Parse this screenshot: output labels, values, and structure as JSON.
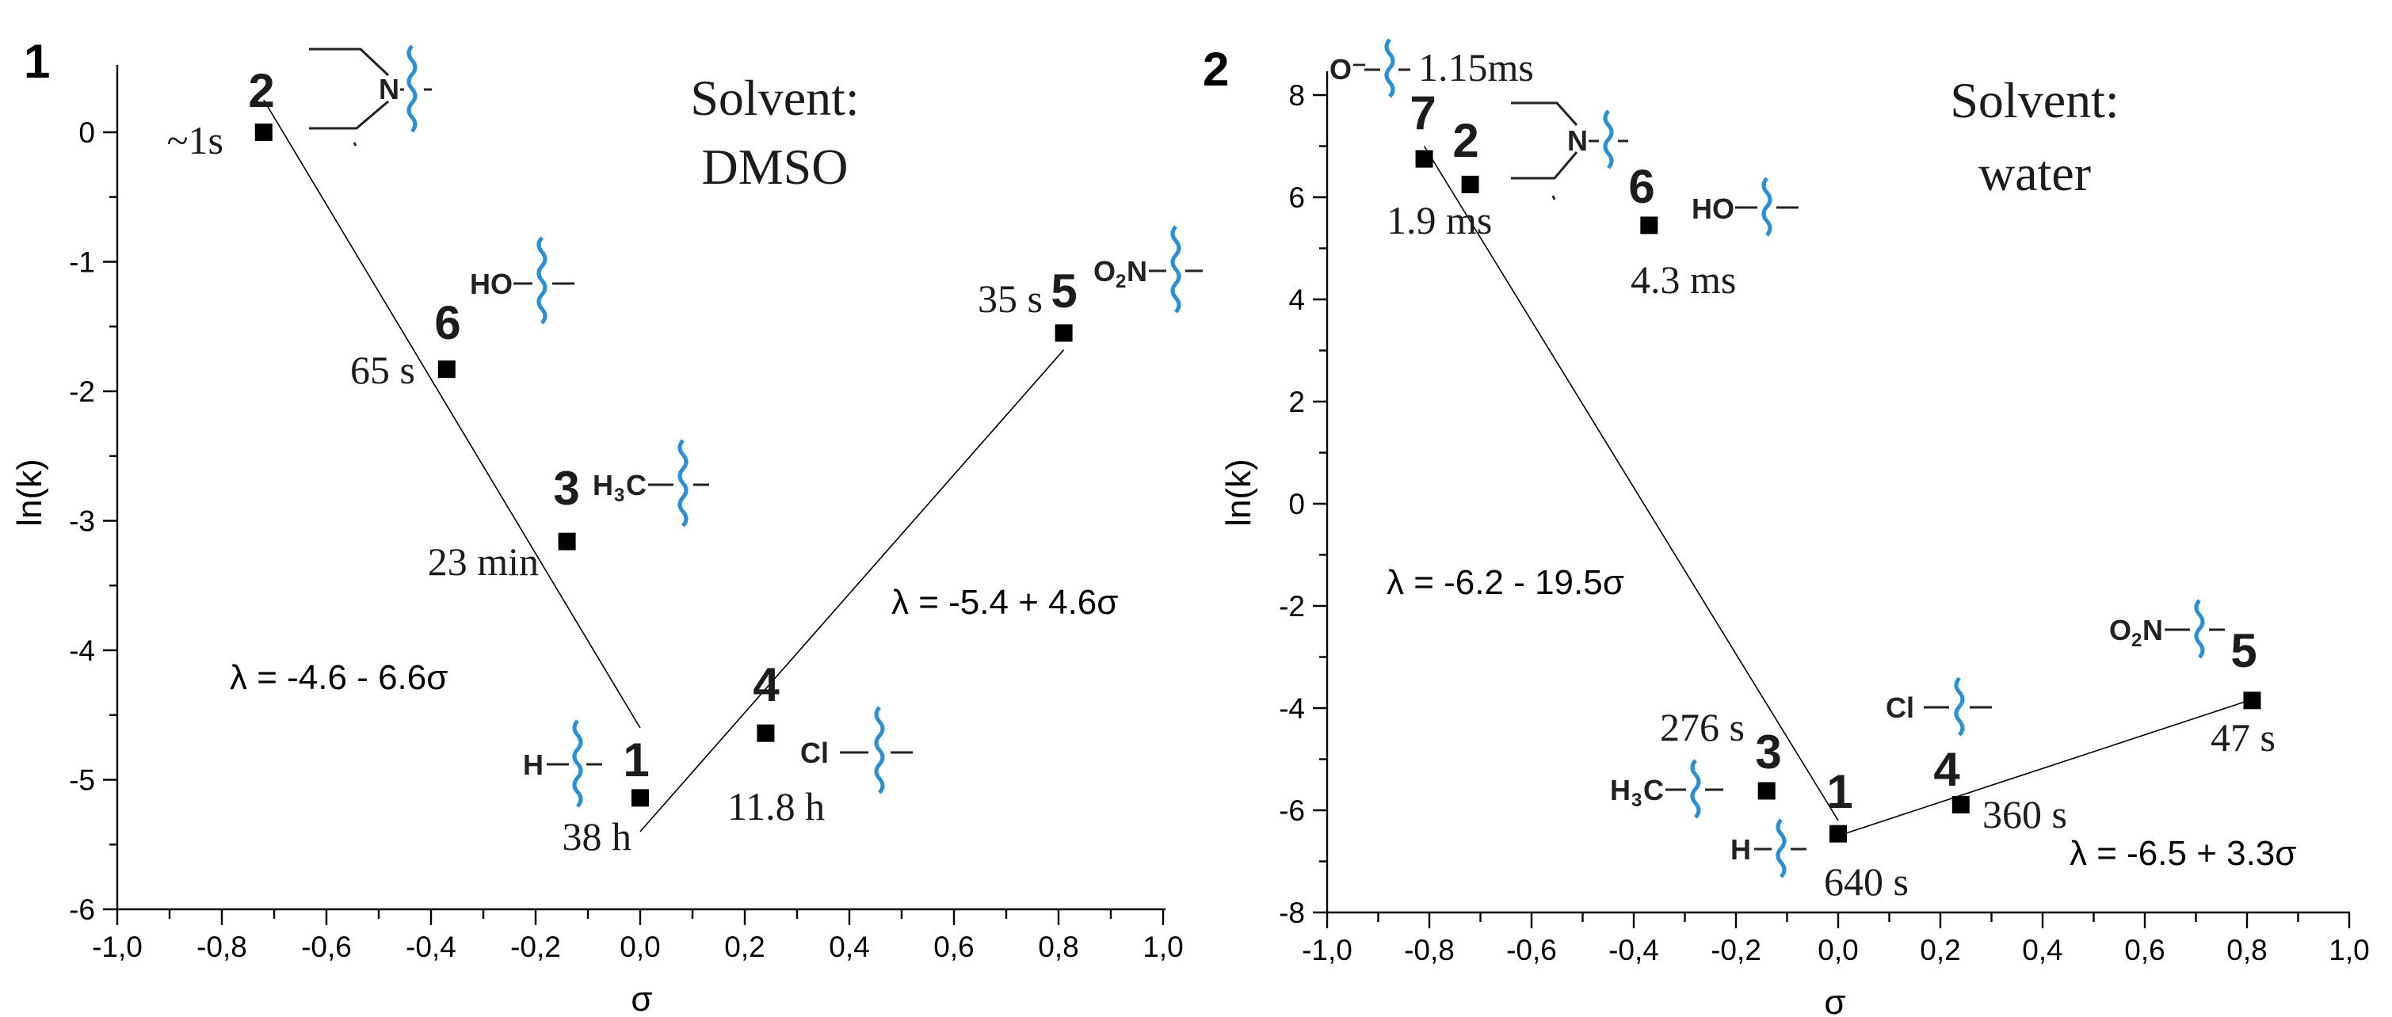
{
  "chart_data": [
    {
      "type": "scatter",
      "panel_label": "1",
      "solvent": [
        "Solvent:",
        "DMSO"
      ],
      "xlabel": "σ",
      "ylabel": "ln(k)",
      "xlim": [
        -1.0,
        1.0
      ],
      "ylim": [
        -6,
        0.5
      ],
      "x_ticks": [
        -1.0,
        -0.8,
        -0.6,
        -0.4,
        -0.2,
        0.0,
        0.2,
        0.4,
        0.6,
        0.8,
        1.0
      ],
      "x_tick_labels": [
        "-1,0",
        "-0,8",
        "-0,6",
        "-0,4",
        "-0,2",
        "0,0",
        "0,2",
        "0,4",
        "0,6",
        "0,8",
        "1,0"
      ],
      "y_ticks": [
        0,
        -1,
        -2,
        -3,
        -4,
        -5,
        -6
      ],
      "y_tick_labels": [
        "0",
        "-1",
        "-2",
        "-3",
        "-4",
        "-5",
        "-6"
      ],
      "points": [
        {
          "id": "2",
          "x": -0.72,
          "y": 0.0,
          "time": "~1s",
          "substituent": "N"
        },
        {
          "id": "6",
          "x": -0.37,
          "y": -1.83,
          "time": "65 s",
          "substituent": "HO"
        },
        {
          "id": "3",
          "x": -0.14,
          "y": -3.16,
          "time": "23 min",
          "substituent": "H3C"
        },
        {
          "id": "1",
          "x": 0.0,
          "y": -5.14,
          "time": "38 h",
          "substituent": "H"
        },
        {
          "id": "4",
          "x": 0.24,
          "y": -4.64,
          "time": "11.8 h",
          "substituent": "Cl"
        },
        {
          "id": "5",
          "x": 0.81,
          "y": -1.55,
          "time": "35 s",
          "substituent": "O2N"
        }
      ],
      "fits": [
        {
          "equation": "λ = -4.6 - 6.6σ",
          "x_range": [
            -0.72,
            0.0
          ]
        },
        {
          "equation": "λ = -5.4 + 4.6σ",
          "x_range": [
            0.0,
            0.81
          ]
        }
      ]
    },
    {
      "type": "scatter",
      "panel_label": "2",
      "solvent": [
        "Solvent:",
        "water"
      ],
      "xlabel": "σ",
      "ylabel": "ln(k)",
      "xlim": [
        -1.0,
        1.0
      ],
      "ylim": [
        -8,
        8.7
      ],
      "x_ticks": [
        -1.0,
        -0.8,
        -0.6,
        -0.4,
        -0.2,
        0.0,
        0.2,
        0.4,
        0.6,
        0.8,
        1.0
      ],
      "x_tick_labels": [
        "-1,0",
        "-0,8",
        "-0,6",
        "-0,4",
        "-0,2",
        "0,0",
        "0,2",
        "0,4",
        "0,6",
        "0,8",
        "1,0"
      ],
      "y_ticks": [
        8,
        6,
        4,
        2,
        0,
        -2,
        -4,
        -6,
        -8
      ],
      "y_tick_labels": [
        "8",
        "6",
        "4",
        "2",
        "0",
        "-2",
        "-4",
        "-6",
        "-8"
      ],
      "points": [
        {
          "id": "7",
          "x": -0.81,
          "y": 6.75,
          "time": "1.15ms",
          "substituent": "O⁻"
        },
        {
          "id": "2",
          "x": -0.72,
          "y": 6.25,
          "time": "1.9 ms",
          "substituent": "N"
        },
        {
          "id": "6",
          "x": -0.37,
          "y": 5.45,
          "time": "4.3 ms",
          "substituent": "HO"
        },
        {
          "id": "3",
          "x": -0.14,
          "y": -5.62,
          "time": "276 s",
          "substituent": "H3C"
        },
        {
          "id": "1",
          "x": 0.0,
          "y": -6.46,
          "time": "640 s",
          "substituent": "H"
        },
        {
          "id": "4",
          "x": 0.24,
          "y": -5.89,
          "time": "360 s",
          "substituent": "Cl"
        },
        {
          "id": "5",
          "x": 0.81,
          "y": -3.85,
          "time": "47 s",
          "substituent": "O2N"
        }
      ],
      "fits": [
        {
          "equation": "λ = -6.2 - 19.5σ",
          "x_range": [
            -0.72,
            0.0
          ]
        },
        {
          "equation": "λ = -6.5 + 3.3σ",
          "x_range": [
            0.0,
            0.81
          ]
        }
      ]
    }
  ]
}
